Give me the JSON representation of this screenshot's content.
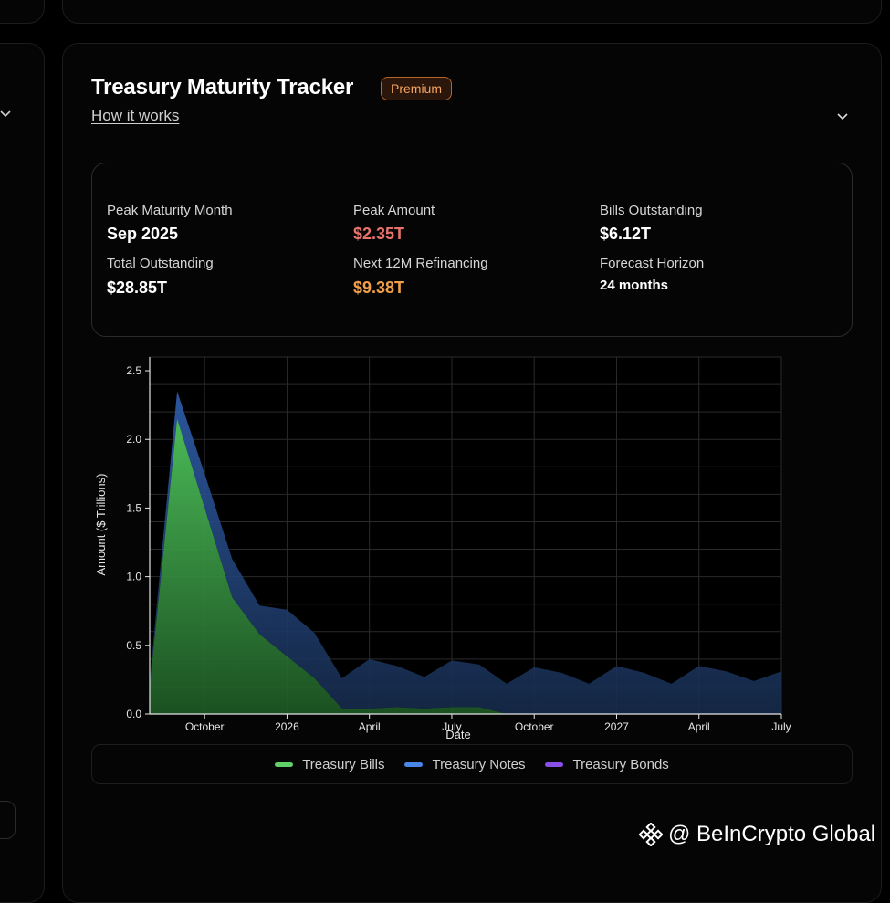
{
  "header": {
    "title": "Treasury Maturity Tracker",
    "badge": "Premium",
    "how_link": "How it works"
  },
  "stats": [
    {
      "label": "Peak Maturity Month",
      "value": "Sep 2025",
      "color": "#ffffff"
    },
    {
      "label": "Peak Amount",
      "value": "$2.35T",
      "color": "#e8736d"
    },
    {
      "label": "Bills Outstanding",
      "value": "$6.12T",
      "color": "#ffffff"
    },
    {
      "label": "Total Outstanding",
      "value": "$28.85T",
      "color": "#ffffff"
    },
    {
      "label": "Next 12M Refinancing",
      "value": "$9.38T",
      "color": "#f0a04b"
    },
    {
      "label": "Forecast Horizon",
      "value": "24 months",
      "color": "#ffffff"
    }
  ],
  "legend": [
    {
      "label": "Treasury Bills",
      "color": "#5fcf6a"
    },
    {
      "label": "Treasury Notes",
      "color": "#4a86e8"
    },
    {
      "label": "Treasury Bonds",
      "color": "#8a4ee8"
    }
  ],
  "watermark": "@ BeInCrypto Global",
  "chart_data": {
    "type": "area",
    "xlabel": "Date",
    "ylabel": "Amount ($ Trillions)",
    "ylim": [
      0,
      2.6
    ],
    "yticks": [
      0.0,
      0.5,
      1.0,
      1.5,
      2.0,
      2.5
    ],
    "xrange": [
      "2025-08",
      "2027-07"
    ],
    "xticks": [
      {
        "date": "2025-10",
        "label": "October"
      },
      {
        "date": "2026-01",
        "label": "2026"
      },
      {
        "date": "2026-04",
        "label": "April"
      },
      {
        "date": "2026-07",
        "label": "July"
      },
      {
        "date": "2026-10",
        "label": "October"
      },
      {
        "date": "2027-01",
        "label": "2027"
      },
      {
        "date": "2027-04",
        "label": "April"
      },
      {
        "date": "2027-07",
        "label": "July"
      }
    ],
    "grid": true,
    "stacked": true,
    "x": [
      "2025-08",
      "2025-09",
      "2025-10",
      "2025-11",
      "2025-12",
      "2026-01",
      "2026-02",
      "2026-03",
      "2026-04",
      "2026-05",
      "2026-06",
      "2026-07",
      "2026-08",
      "2026-09",
      "2026-10",
      "2026-11",
      "2026-12",
      "2027-01",
      "2027-02",
      "2027-03",
      "2027-04",
      "2027-05",
      "2027-06",
      "2027-07"
    ],
    "series": [
      {
        "name": "Treasury Bills",
        "color": "#5fcf6a",
        "values": [
          0.2,
          2.15,
          1.5,
          0.85,
          0.58,
          0.42,
          0.26,
          0.04,
          0.04,
          0.05,
          0.04,
          0.05,
          0.05,
          0,
          0,
          0,
          0,
          0,
          0,
          0,
          0,
          0,
          0,
          0
        ]
      },
      {
        "name": "Treasury Notes",
        "color": "#4a86e8",
        "values": [
          0.05,
          0.2,
          0.25,
          0.28,
          0.21,
          0.34,
          0.33,
          0.22,
          0.36,
          0.3,
          0.23,
          0.34,
          0.31,
          0.22,
          0.34,
          0.3,
          0.22,
          0.35,
          0.3,
          0.22,
          0.35,
          0.31,
          0.24,
          0.31
        ]
      },
      {
        "name": "Treasury Bonds",
        "color": "#8a4ee8",
        "values": [
          0,
          0,
          0,
          0,
          0,
          0,
          0,
          0,
          0,
          0,
          0,
          0,
          0,
          0,
          0,
          0,
          0,
          0,
          0,
          0,
          0,
          0,
          0,
          0
        ]
      }
    ]
  }
}
